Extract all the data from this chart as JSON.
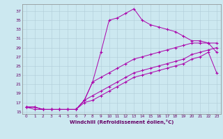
{
  "xlabel": "Windchill (Refroidissement éolien,°C)",
  "background_color": "#cce8f0",
  "line_color": "#aa00aa",
  "xlim": [
    -0.5,
    23.5
  ],
  "ylim": [
    14.5,
    38.5
  ],
  "yticks": [
    15,
    17,
    19,
    21,
    23,
    25,
    27,
    29,
    31,
    33,
    35,
    37
  ],
  "xticks": [
    0,
    1,
    2,
    3,
    4,
    5,
    6,
    7,
    8,
    9,
    10,
    11,
    12,
    13,
    14,
    15,
    16,
    17,
    18,
    19,
    20,
    21,
    22,
    23
  ],
  "series1_x": [
    0,
    1,
    2,
    3,
    4,
    5,
    6,
    7,
    8,
    9,
    10,
    11,
    12,
    13,
    14,
    15,
    16,
    17,
    18,
    19,
    20,
    21,
    22,
    23
  ],
  "series1_y": [
    16,
    15.5,
    15.5,
    15.5,
    15.5,
    15.5,
    15.5,
    17.5,
    21.5,
    28,
    35,
    35.5,
    36.5,
    37.5,
    35,
    34,
    33.5,
    33,
    32.5,
    31.5,
    30.5,
    30.5,
    30,
    28
  ],
  "series2_x": [
    0,
    1,
    2,
    3,
    4,
    5,
    6,
    7,
    8,
    9,
    10,
    11,
    12,
    13,
    14,
    15,
    16,
    17,
    18,
    19,
    20,
    21,
    22,
    23
  ],
  "series2_y": [
    16,
    16,
    15.5,
    15.5,
    15.5,
    15.5,
    15.5,
    17.5,
    21.5,
    22.5,
    23.5,
    24.5,
    25.5,
    26.5,
    27,
    27.5,
    28,
    28.5,
    29,
    29.5,
    30,
    30,
    30,
    30
  ],
  "series3_x": [
    0,
    1,
    2,
    3,
    4,
    5,
    6,
    7,
    8,
    9,
    10,
    11,
    12,
    13,
    14,
    15,
    16,
    17,
    18,
    19,
    20,
    21,
    22,
    23
  ],
  "series3_y": [
    16,
    16,
    15.5,
    15.5,
    15.5,
    15.5,
    15.5,
    17.5,
    18.5,
    19.5,
    20.5,
    21.5,
    22.5,
    23.5,
    24,
    24.5,
    25,
    25.5,
    26,
    26.5,
    27.5,
    28,
    28.5,
    29
  ],
  "series4_x": [
    0,
    1,
    2,
    3,
    4,
    5,
    6,
    7,
    8,
    9,
    10,
    11,
    12,
    13,
    14,
    15,
    16,
    17,
    18,
    19,
    20,
    21,
    22,
    23
  ],
  "series4_y": [
    16,
    16,
    15.5,
    15.5,
    15.5,
    15.5,
    15.5,
    17,
    17.5,
    18.5,
    19.5,
    20.5,
    21.5,
    22.5,
    23,
    23.5,
    24,
    24.5,
    25,
    25.5,
    26.5,
    27,
    28,
    23.5
  ]
}
